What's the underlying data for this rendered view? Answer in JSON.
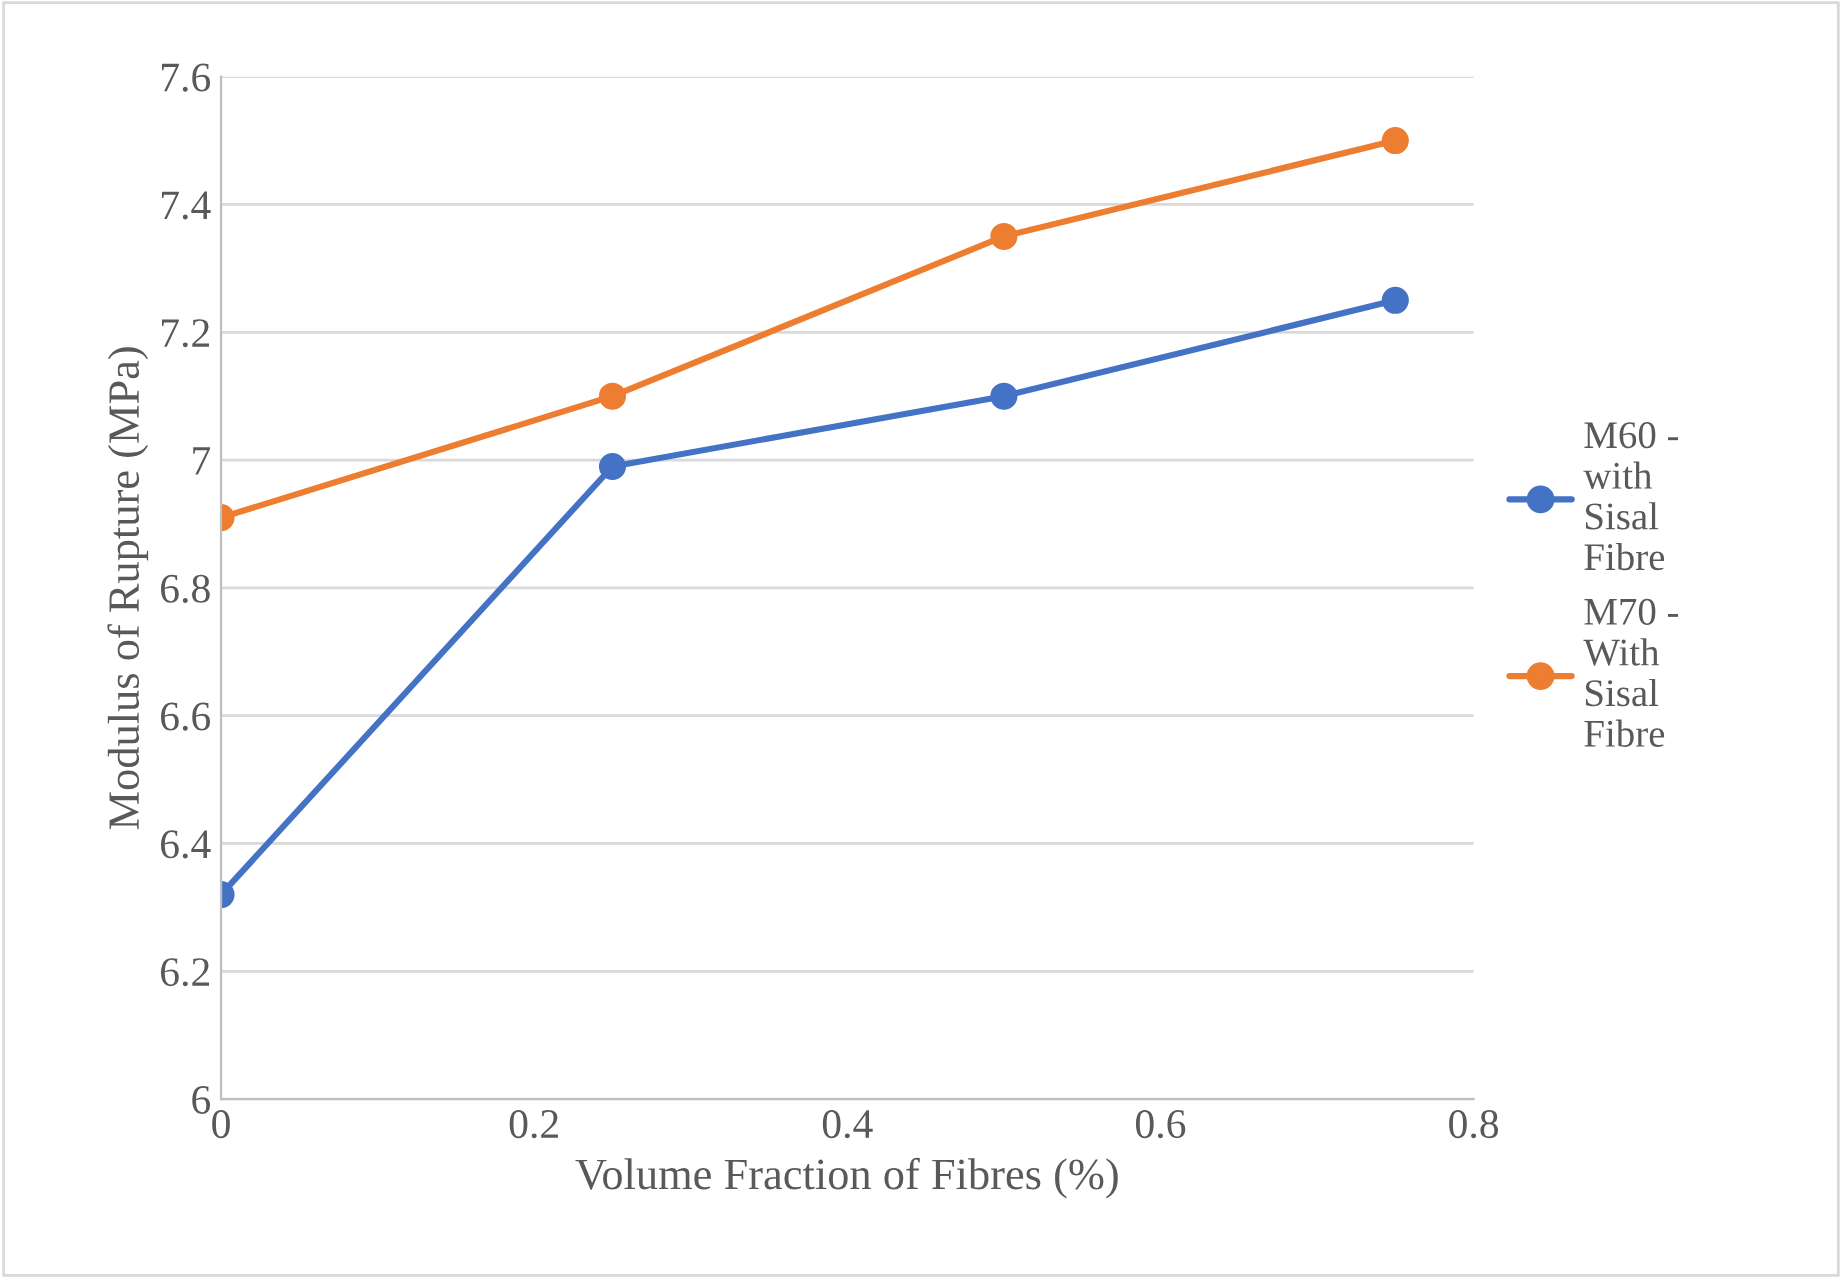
{
  "chart_data": {
    "type": "line",
    "xlabel": "Volume Fraction of Fibres (%)",
    "ylabel": "Modulus of Rupture (MPa)",
    "x": [
      0,
      0.25,
      0.5,
      0.75
    ],
    "series": [
      {
        "name": "M60 - with Sisal Fibre",
        "color": "#4472c4",
        "values": [
          6.32,
          6.99,
          7.1,
          7.25
        ]
      },
      {
        "name": "M70 - With Sisal Fibre",
        "color": "#ed7d31",
        "values": [
          6.91,
          7.1,
          7.35,
          7.5
        ]
      }
    ],
    "xlim": [
      0,
      0.8
    ],
    "xticks": [
      0,
      0.2,
      0.4,
      0.6,
      0.8
    ],
    "ylim": [
      6,
      7.6
    ],
    "yticks": [
      6,
      6.2,
      6.4,
      6.6,
      6.8,
      7,
      7.2,
      7.4,
      7.6
    ],
    "grid": "y",
    "legend": "right",
    "marker": "circle",
    "line_style": "solid"
  }
}
